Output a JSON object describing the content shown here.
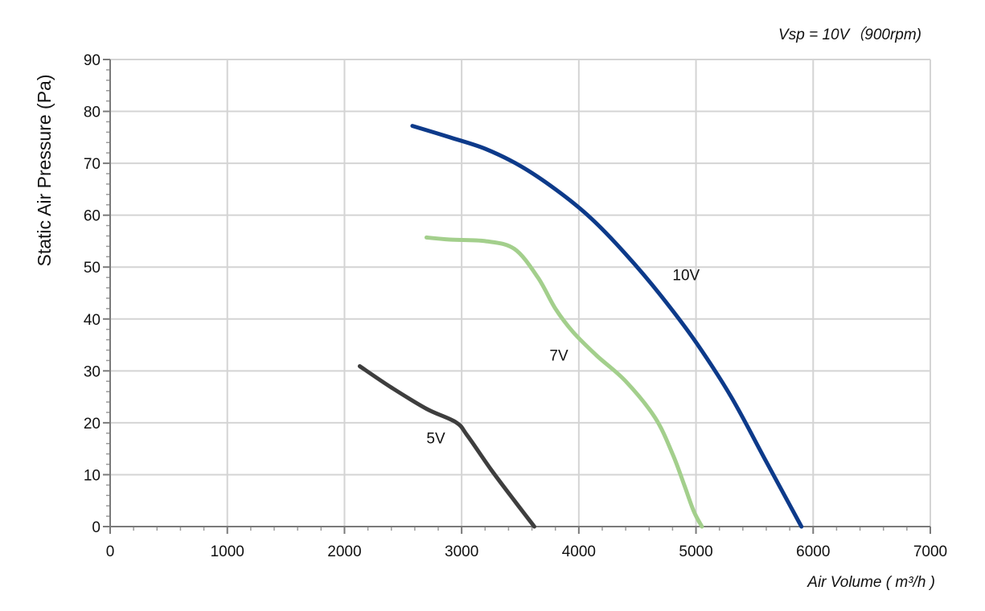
{
  "chart_data": {
    "type": "line",
    "subtitle": "Vsp = 10V（900rpm)",
    "xlabel": "Air Volume ( m³/h )",
    "ylabel": "Static Air Pressure  (Pa)",
    "xlim": [
      0,
      7000
    ],
    "ylim": [
      0,
      90
    ],
    "xticks": [
      "0",
      "1000",
      "2000",
      "3000",
      "4000",
      "5000",
      "6000",
      "7000"
    ],
    "yticks": [
      "0",
      "10",
      "20",
      "30",
      "40",
      "50",
      "60",
      "70",
      "80",
      "90"
    ],
    "grid": true,
    "legend": "inline labels",
    "series": [
      {
        "name": "10V",
        "color": "#0d3a8a",
        "x": [
          2580,
          2900,
          3200,
          3500,
          3800,
          4100,
          4400,
          4700,
          5000,
          5300,
          5600,
          5900
        ],
        "y": [
          77.2,
          75.0,
          72.8,
          69.5,
          65.0,
          59.5,
          52.5,
          44.5,
          35.5,
          25.0,
          12.5,
          0.0
        ]
      },
      {
        "name": "7V",
        "color": "#a3cf8c",
        "x": [
          2700,
          2900,
          3200,
          3450,
          3650,
          3800,
          3950,
          4150,
          4400,
          4650,
          4800,
          4900,
          4980,
          5050
        ],
        "y": [
          55.7,
          55.3,
          55.0,
          53.5,
          48.0,
          42.0,
          37.5,
          33.0,
          28.0,
          21.0,
          14.0,
          8.0,
          3.0,
          0.0
        ]
      },
      {
        "name": "5V",
        "color": "#3e3e3e",
        "x": [
          2130,
          2400,
          2700,
          2950,
          3050,
          3250,
          3450,
          3620
        ],
        "y": [
          30.9,
          26.8,
          22.7,
          20.1,
          17.5,
          11.0,
          5.0,
          0.0
        ]
      }
    ]
  }
}
